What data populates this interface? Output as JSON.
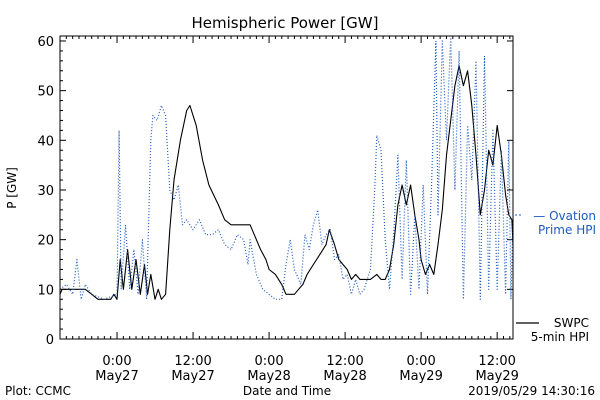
{
  "chart_data": {
    "type": "line",
    "title": "Hemispheric Power [GW]",
    "xlabel": "Date and Time",
    "ylabel": "P [GW]",
    "ylim": [
      0,
      61
    ],
    "xlim": [
      "2019-05-26 15:00",
      "2019-05-29 14:30"
    ],
    "yticks": [
      0,
      10,
      20,
      30,
      40,
      50,
      60
    ],
    "xticks": [
      {
        "t": "2019-05-27 00:00",
        "time": "0:00",
        "day": "May27"
      },
      {
        "t": "2019-05-27 12:00",
        "time": "12:00",
        "day": "May27"
      },
      {
        "t": "2019-05-28 00:00",
        "time": "0:00",
        "day": "May28"
      },
      {
        "t": "2019-05-28 12:00",
        "time": "12:00",
        "day": "May28"
      },
      {
        "t": "2019-05-29 00:00",
        "time": "0:00",
        "day": "May29"
      },
      {
        "t": "2019-05-29 12:00",
        "time": "12:00",
        "day": "May29"
      }
    ],
    "grid": false,
    "legend_position": "right",
    "series": [
      {
        "name": "SWPC 5-min HPI",
        "legend_lines": [
          "SWPC",
          "5-min HPI"
        ],
        "style": "solid",
        "color": "#000000",
        "points": [
          [
            "2019-05-26 15:00",
            9
          ],
          [
            "2019-05-26 15:20",
            10
          ],
          [
            "2019-05-26 19:00",
            10
          ],
          [
            "2019-05-26 20:00",
            9
          ],
          [
            "2019-05-26 21:00",
            8
          ],
          [
            "2019-05-26 23:00",
            8
          ],
          [
            "2019-05-26 23:30",
            9
          ],
          [
            "2019-05-27 00:00",
            8
          ],
          [
            "2019-05-27 00:30",
            16
          ],
          [
            "2019-05-27 01:00",
            10
          ],
          [
            "2019-05-27 01:40",
            18
          ],
          [
            "2019-05-27 02:20",
            10
          ],
          [
            "2019-05-27 03:00",
            16
          ],
          [
            "2019-05-27 03:40",
            9
          ],
          [
            "2019-05-27 04:20",
            15
          ],
          [
            "2019-05-27 04:50",
            9
          ],
          [
            "2019-05-27 05:20",
            13
          ],
          [
            "2019-05-27 06:00",
            8
          ],
          [
            "2019-05-27 06:30",
            10
          ],
          [
            "2019-05-27 07:00",
            8
          ],
          [
            "2019-05-27 07:40",
            9
          ],
          [
            "2019-05-27 08:20",
            22
          ],
          [
            "2019-05-27 09:00",
            32
          ],
          [
            "2019-05-27 10:00",
            40
          ],
          [
            "2019-05-27 11:00",
            46
          ],
          [
            "2019-05-27 11:30",
            47
          ],
          [
            "2019-05-27 12:30",
            43
          ],
          [
            "2019-05-27 13:30",
            36
          ],
          [
            "2019-05-27 14:30",
            31
          ],
          [
            "2019-05-27 16:00",
            27
          ],
          [
            "2019-05-27 17:00",
            24
          ],
          [
            "2019-05-27 18:00",
            23
          ],
          [
            "2019-05-27 21:00",
            23
          ],
          [
            "2019-05-27 21:40",
            21
          ],
          [
            "2019-05-27 22:40",
            18
          ],
          [
            "2019-05-27 23:30",
            16
          ],
          [
            "2019-05-28 00:00",
            14
          ],
          [
            "2019-05-28 01:00",
            13
          ],
          [
            "2019-05-28 02:00",
            11
          ],
          [
            "2019-05-28 02:40",
            9
          ],
          [
            "2019-05-28 04:00",
            9
          ],
          [
            "2019-05-28 04:40",
            10
          ],
          [
            "2019-05-28 05:20",
            11
          ],
          [
            "2019-05-28 06:00",
            13
          ],
          [
            "2019-05-28 07:00",
            15
          ],
          [
            "2019-05-28 08:00",
            17
          ],
          [
            "2019-05-28 09:00",
            19
          ],
          [
            "2019-05-28 09:30",
            22
          ],
          [
            "2019-05-28 10:20",
            19
          ],
          [
            "2019-05-28 11:00",
            16
          ],
          [
            "2019-05-28 11:40",
            15
          ],
          [
            "2019-05-28 12:20",
            14
          ],
          [
            "2019-05-28 13:00",
            12
          ],
          [
            "2019-05-28 13:40",
            13
          ],
          [
            "2019-05-28 14:20",
            12
          ],
          [
            "2019-05-28 15:00",
            12
          ],
          [
            "2019-05-28 16:00",
            12
          ],
          [
            "2019-05-28 17:00",
            13
          ],
          [
            "2019-05-28 17:40",
            12
          ],
          [
            "2019-05-28 18:20",
            12
          ],
          [
            "2019-05-28 19:00",
            14
          ],
          [
            "2019-05-28 19:40",
            19
          ],
          [
            "2019-05-28 20:20",
            27
          ],
          [
            "2019-05-28 21:00",
            31
          ],
          [
            "2019-05-28 21:40",
            27
          ],
          [
            "2019-05-28 22:20",
            31
          ],
          [
            "2019-05-28 23:00",
            25
          ],
          [
            "2019-05-28 23:40",
            20
          ],
          [
            "2019-05-29 00:00",
            16
          ],
          [
            "2019-05-29 00:40",
            13
          ],
          [
            "2019-05-29 01:20",
            15
          ],
          [
            "2019-05-29 02:00",
            13
          ],
          [
            "2019-05-29 02:40",
            19
          ],
          [
            "2019-05-29 03:20",
            26
          ],
          [
            "2019-05-29 04:00",
            37
          ],
          [
            "2019-05-29 04:40",
            44
          ],
          [
            "2019-05-29 05:20",
            51
          ],
          [
            "2019-05-29 06:00",
            55
          ],
          [
            "2019-05-29 06:40",
            51
          ],
          [
            "2019-05-29 07:20",
            54
          ],
          [
            "2019-05-29 08:00",
            47
          ],
          [
            "2019-05-29 08:40",
            37
          ],
          [
            "2019-05-29 09:20",
            25
          ],
          [
            "2019-05-29 10:00",
            30
          ],
          [
            "2019-05-29 10:40",
            38
          ],
          [
            "2019-05-29 11:20",
            35
          ],
          [
            "2019-05-29 12:00",
            43
          ],
          [
            "2019-05-29 12:40",
            37
          ],
          [
            "2019-05-29 13:20",
            29
          ],
          [
            "2019-05-29 13:50",
            25
          ],
          [
            "2019-05-29 14:20",
            24
          ],
          [
            "2019-05-29 14:30",
            19
          ]
        ]
      },
      {
        "name": "Ovation Prime HPI",
        "legend_lines": [
          "— Ovation",
          "Prime HPI"
        ],
        "style": "dotted",
        "color": "#1f5bbf",
        "points": [
          [
            "2019-05-26 15:00",
            10
          ],
          [
            "2019-05-26 16:00",
            11
          ],
          [
            "2019-05-26 17:00",
            9
          ],
          [
            "2019-05-26 17:40",
            16
          ],
          [
            "2019-05-26 18:20",
            8
          ],
          [
            "2019-05-26 19:00",
            11
          ],
          [
            "2019-05-26 20:00",
            9
          ],
          [
            "2019-05-26 22:00",
            8
          ],
          [
            "2019-05-27 00:00",
            9
          ],
          [
            "2019-05-27 00:20",
            42
          ],
          [
            "2019-05-27 00:40",
            10
          ],
          [
            "2019-05-27 01:20",
            23
          ],
          [
            "2019-05-27 02:00",
            10
          ],
          [
            "2019-05-27 02:40",
            18
          ],
          [
            "2019-05-27 03:20",
            9
          ],
          [
            "2019-05-27 04:00",
            20
          ],
          [
            "2019-05-27 04:40",
            8
          ],
          [
            "2019-05-27 05:20",
            40
          ],
          [
            "2019-05-27 05:40",
            45
          ],
          [
            "2019-05-27 06:20",
            44
          ],
          [
            "2019-05-27 07:00",
            47
          ],
          [
            "2019-05-27 07:40",
            45
          ],
          [
            "2019-05-27 08:20",
            30
          ],
          [
            "2019-05-27 09:00",
            28
          ],
          [
            "2019-05-27 09:40",
            31
          ],
          [
            "2019-05-27 10:20",
            23
          ],
          [
            "2019-05-27 11:00",
            24
          ],
          [
            "2019-05-27 12:00",
            22
          ],
          [
            "2019-05-27 13:00",
            24
          ],
          [
            "2019-05-27 14:00",
            21
          ],
          [
            "2019-05-27 15:00",
            21
          ],
          [
            "2019-05-27 16:00",
            22
          ],
          [
            "2019-05-27 17:00",
            19
          ],
          [
            "2019-05-27 18:00",
            18
          ],
          [
            "2019-05-27 19:00",
            21
          ],
          [
            "2019-05-27 20:00",
            20
          ],
          [
            "2019-05-27 20:40",
            15
          ],
          [
            "2019-05-27 21:00",
            20
          ],
          [
            "2019-05-27 22:00",
            13
          ],
          [
            "2019-05-27 23:00",
            10
          ],
          [
            "2019-05-28 00:00",
            9
          ],
          [
            "2019-05-28 01:00",
            8
          ],
          [
            "2019-05-28 02:00",
            8
          ],
          [
            "2019-05-28 02:40",
            15
          ],
          [
            "2019-05-28 03:20",
            20
          ],
          [
            "2019-05-28 04:00",
            14
          ],
          [
            "2019-05-28 05:00",
            11
          ],
          [
            "2019-05-28 05:40",
            21
          ],
          [
            "2019-05-28 06:20",
            18
          ],
          [
            "2019-05-28 07:00",
            23
          ],
          [
            "2019-05-28 07:40",
            26
          ],
          [
            "2019-05-28 08:20",
            19
          ],
          [
            "2019-05-28 09:00",
            21
          ],
          [
            "2019-05-28 09:40",
            22
          ],
          [
            "2019-05-28 10:20",
            16
          ],
          [
            "2019-05-28 11:00",
            17
          ],
          [
            "2019-05-28 11:40",
            12
          ],
          [
            "2019-05-28 12:20",
            13
          ],
          [
            "2019-05-28 13:00",
            9
          ],
          [
            "2019-05-28 13:40",
            12
          ],
          [
            "2019-05-28 14:20",
            9
          ],
          [
            "2019-05-28 15:00",
            10
          ],
          [
            "2019-05-28 16:00",
            14
          ],
          [
            "2019-05-28 16:40",
            30
          ],
          [
            "2019-05-28 17:00",
            41
          ],
          [
            "2019-05-28 17:40",
            38
          ],
          [
            "2019-05-28 18:20",
            20
          ],
          [
            "2019-05-28 19:00",
            10
          ],
          [
            "2019-05-28 19:40",
            21
          ],
          [
            "2019-05-28 20:20",
            37
          ],
          [
            "2019-05-28 21:00",
            12
          ],
          [
            "2019-05-28 21:40",
            36
          ],
          [
            "2019-05-28 22:20",
            9
          ],
          [
            "2019-05-28 23:00",
            25
          ],
          [
            "2019-05-28 23:40",
            10
          ],
          [
            "2019-05-29 00:20",
            31
          ],
          [
            "2019-05-29 01:00",
            9
          ],
          [
            "2019-05-29 01:40",
            32
          ],
          [
            "2019-05-29 02:20",
            60
          ],
          [
            "2019-05-29 02:40",
            25
          ],
          [
            "2019-05-29 03:20",
            60
          ],
          [
            "2019-05-29 04:00",
            40
          ],
          [
            "2019-05-29 04:40",
            61
          ],
          [
            "2019-05-29 05:20",
            30
          ],
          [
            "2019-05-29 06:00",
            58
          ],
          [
            "2019-05-29 06:40",
            8
          ],
          [
            "2019-05-29 07:20",
            43
          ],
          [
            "2019-05-29 08:00",
            32
          ],
          [
            "2019-05-29 08:40",
            56
          ],
          [
            "2019-05-29 09:20",
            8
          ],
          [
            "2019-05-29 10:00",
            57
          ],
          [
            "2019-05-29 10:40",
            10
          ],
          [
            "2019-05-29 11:20",
            42
          ],
          [
            "2019-05-29 12:00",
            10
          ],
          [
            "2019-05-29 12:40",
            38
          ],
          [
            "2019-05-29 13:20",
            9
          ],
          [
            "2019-05-29 13:50",
            40
          ],
          [
            "2019-05-29 14:10",
            8
          ],
          [
            "2019-05-29 14:30",
            24
          ]
        ]
      }
    ]
  },
  "footer": {
    "plot_credit": "Plot: CCMC",
    "timestamp": "2019/05/29 14:30:16"
  }
}
